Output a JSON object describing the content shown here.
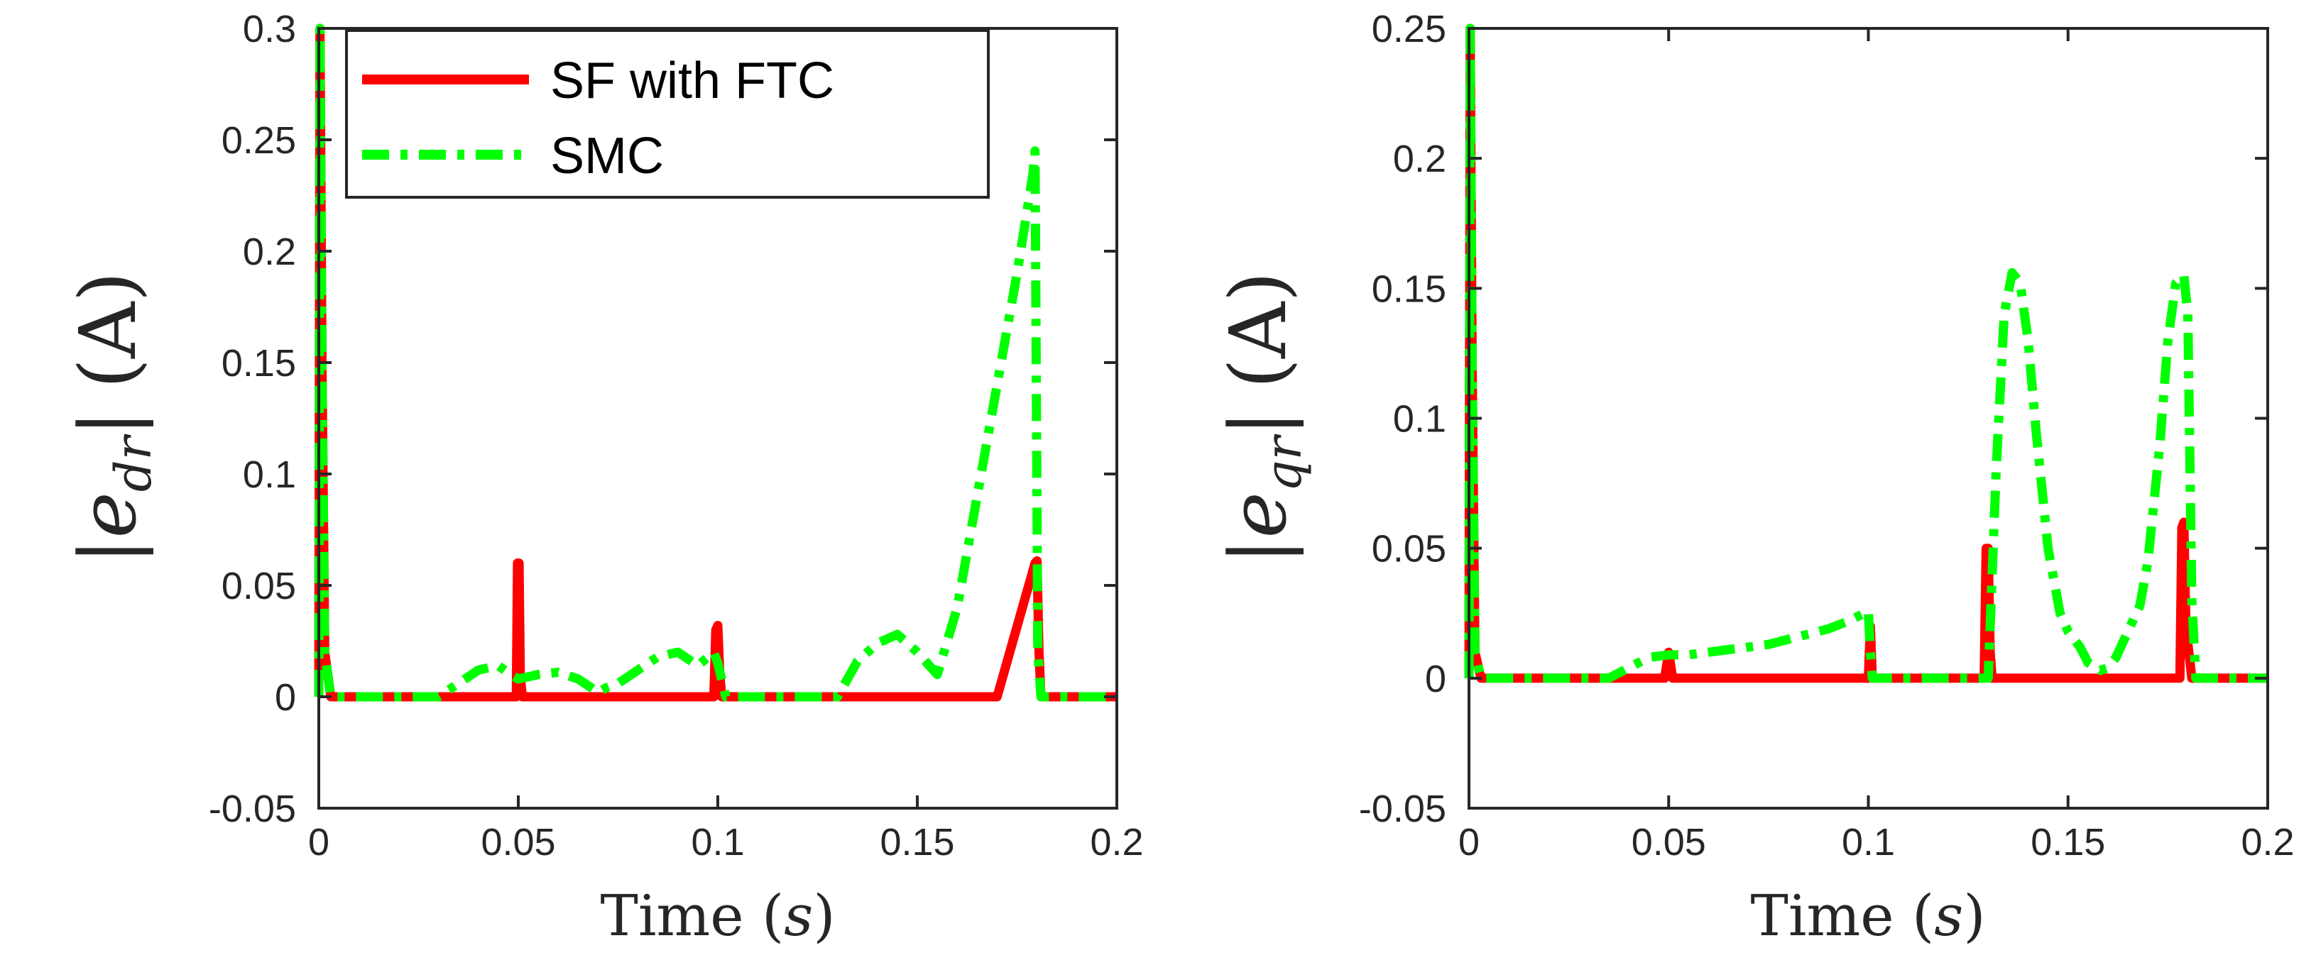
{
  "chart_data": [
    {
      "type": "line",
      "panel": "left",
      "xlabel": "Time (s)",
      "xlabel_text": "Time",
      "xlabel_var": "s",
      "ylabel": "|e_dr| (A)",
      "ylabel_var": "e",
      "ylabel_sub": "dr",
      "ylabel_unit": "(A)",
      "xlim": [
        0,
        0.2
      ],
      "ylim": [
        -0.05,
        0.3
      ],
      "xticks": [
        0,
        0.05,
        0.1,
        0.15,
        0.2
      ],
      "xtick_labels": [
        "0",
        "0.05",
        "0.1",
        "0.15",
        "0.2"
      ],
      "yticks": [
        -0.05,
        0,
        0.05,
        0.1,
        0.15,
        0.2,
        0.25,
        0.3
      ],
      "ytick_labels": [
        "-0.05",
        "0",
        "0.05",
        "0.1",
        "0.15",
        "0.2",
        "0.25",
        "0.3"
      ],
      "legend": {
        "location": "top-left",
        "entries": [
          "SF with FTC",
          "SMC"
        ]
      },
      "series": [
        {
          "name": "SF with FTC",
          "color": "#ff0000",
          "style": "solid",
          "x": [
            0,
            0.0003,
            0.0008,
            0.0015,
            0.003,
            0.04,
            0.0495,
            0.0498,
            0.0502,
            0.0505,
            0.051,
            0.099,
            0.0995,
            0.1,
            0.1005,
            0.101,
            0.17,
            0.1795,
            0.18,
            0.1805,
            0.181,
            0.2
          ],
          "values": [
            0,
            0.3,
            0.15,
            0.02,
            0,
            0,
            0,
            0.06,
            0.06,
            0.01,
            0,
            0,
            0.03,
            0.032,
            0.01,
            0,
            0,
            0.06,
            0.061,
            0.02,
            0,
            0
          ]
        },
        {
          "name": "SMC",
          "color": "#00ff00",
          "style": "dash-dot",
          "x": [
            0,
            0.0003,
            0.0008,
            0.0015,
            0.003,
            0.03,
            0.035,
            0.04,
            0.045,
            0.048,
            0.05,
            0.055,
            0.06,
            0.065,
            0.07,
            0.072,
            0.075,
            0.08,
            0.085,
            0.09,
            0.095,
            0.099,
            0.1,
            0.102,
            0.13,
            0.135,
            0.14,
            0.145,
            0.15,
            0.155,
            0.16,
            0.165,
            0.17,
            0.175,
            0.179,
            0.1795,
            0.1802,
            0.181,
            0.2
          ],
          "values": [
            0,
            0.3,
            0.15,
            0.02,
            0,
            0,
            0.006,
            0.012,
            0.014,
            0.01,
            0.008,
            0.01,
            0.011,
            0.008,
            0.002,
            0.004,
            0.006,
            0.012,
            0.018,
            0.02,
            0.014,
            0.02,
            0.015,
            0,
            0,
            0.016,
            0.024,
            0.028,
            0.02,
            0.01,
            0.04,
            0.09,
            0.14,
            0.19,
            0.235,
            0.245,
            0.02,
            0,
            0
          ]
        }
      ]
    },
    {
      "type": "line",
      "panel": "right",
      "xlabel": "Time (s)",
      "xlabel_text": "Time",
      "xlabel_var": "s",
      "ylabel": "|e_qr| (A)",
      "ylabel_var": "e",
      "ylabel_sub": "qr",
      "ylabel_unit": "(A)",
      "xlim": [
        0,
        0.2
      ],
      "ylim": [
        -0.05,
        0.25
      ],
      "xticks": [
        0,
        0.05,
        0.1,
        0.15,
        0.2
      ],
      "xtick_labels": [
        "0",
        "0.05",
        "0.1",
        "0.15",
        "0.2"
      ],
      "yticks": [
        -0.05,
        0,
        0.05,
        0.1,
        0.15,
        0.2,
        0.25
      ],
      "ytick_labels": [
        "-0.05",
        "0",
        "0.05",
        "0.1",
        "0.15",
        "0.2",
        "0.25"
      ],
      "series": [
        {
          "name": "SF with FTC",
          "color": "#ff0000",
          "style": "solid",
          "x": [
            0,
            0.0003,
            0.0008,
            0.0015,
            0.003,
            0.049,
            0.05,
            0.051,
            0.1,
            0.1005,
            0.101,
            0.129,
            0.1295,
            0.13,
            0.1305,
            0.131,
            0.178,
            0.1785,
            0.179,
            0.1795,
            0.181,
            0.2
          ],
          "values": [
            0,
            0.25,
            0.12,
            0.01,
            0,
            0,
            0.01,
            0,
            0,
            0.02,
            0,
            0,
            0.05,
            0.05,
            0.01,
            0,
            0,
            0.058,
            0.06,
            0.02,
            0,
            0
          ]
        },
        {
          "name": "SMC",
          "color": "#00ff00",
          "style": "dash-dot",
          "x": [
            0,
            0.0003,
            0.0008,
            0.0015,
            0.003,
            0.035,
            0.04,
            0.045,
            0.05,
            0.055,
            0.06,
            0.065,
            0.07,
            0.075,
            0.08,
            0.085,
            0.09,
            0.095,
            0.099,
            0.1,
            0.1005,
            0.101,
            0.13,
            0.132,
            0.134,
            0.136,
            0.138,
            0.14,
            0.142,
            0.145,
            0.148,
            0.15,
            0.153,
            0.155,
            0.158,
            0.16,
            0.162,
            0.165,
            0.168,
            0.17,
            0.173,
            0.175,
            0.177,
            0.179,
            0.18,
            0.181,
            0.182,
            0.2
          ],
          "values": [
            0,
            0.25,
            0.12,
            0.01,
            0,
            0,
            0.004,
            0.008,
            0.009,
            0.009,
            0.01,
            0.011,
            0.012,
            0.013,
            0.015,
            0.017,
            0.019,
            0.022,
            0.025,
            0.026,
            0.01,
            0,
            0,
            0.08,
            0.14,
            0.156,
            0.152,
            0.13,
            0.095,
            0.05,
            0.025,
            0.018,
            0.012,
            0.006,
            0.003,
            0.004,
            0.008,
            0.018,
            0.028,
            0.045,
            0.09,
            0.13,
            0.152,
            0.155,
            0.14,
            0.03,
            0,
            0
          ]
        }
      ]
    }
  ]
}
